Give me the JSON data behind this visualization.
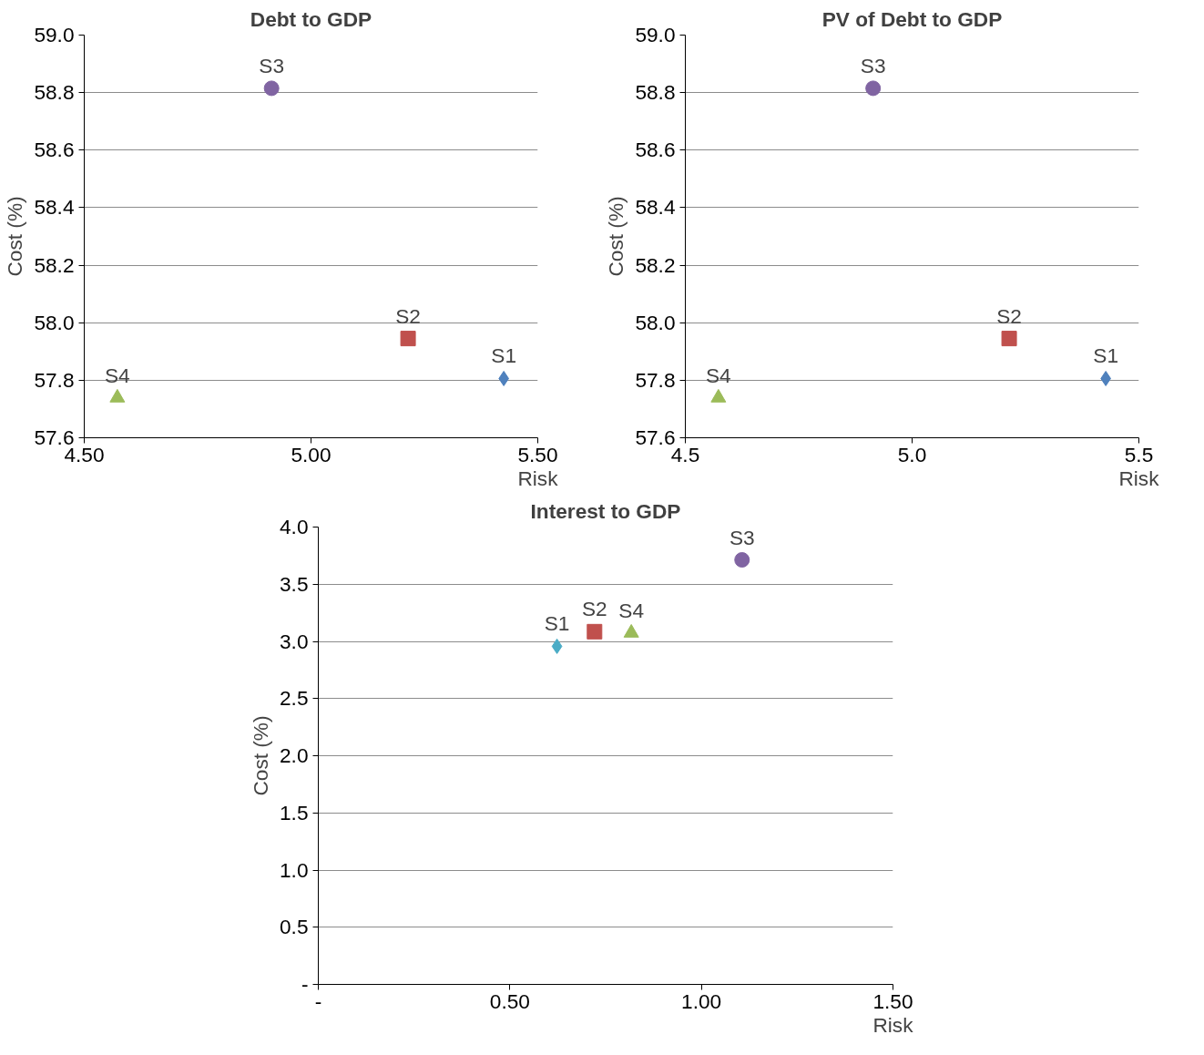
{
  "chart_data": [
    {
      "type": "scatter",
      "title": "Debt to GDP",
      "xlabel": "Risk",
      "ylabel": "Cost (%)",
      "grid": "y",
      "xlim": [
        4.5,
        5.5
      ],
      "xticks": [
        {
          "value": 4.5,
          "label": "4.50"
        },
        {
          "value": 5.0,
          "label": "5.00"
        },
        {
          "value": 5.5,
          "label": "5.50"
        }
      ],
      "ylim": [
        57.6,
        59.0
      ],
      "yticks": [
        {
          "value": 57.6,
          "label": "57.6"
        },
        {
          "value": 57.8,
          "label": "57.8"
        },
        {
          "value": 58.0,
          "label": "58.0"
        },
        {
          "value": 58.2,
          "label": "58.2"
        },
        {
          "value": 58.4,
          "label": "58.4"
        },
        {
          "value": 58.6,
          "label": "58.6"
        },
        {
          "value": 58.8,
          "label": "58.8"
        },
        {
          "value": 59.0,
          "label": "59.0"
        }
      ],
      "series": [
        {
          "name": "S1",
          "color": "#4f81bd",
          "marker": "diamond",
          "x": [
            5.425
          ],
          "values": [
            57.806
          ]
        },
        {
          "name": "S2",
          "color": "#c0504d",
          "marker": "square",
          "x": [
            5.214
          ],
          "values": [
            57.945
          ]
        },
        {
          "name": "S3",
          "color": "#8064a2",
          "marker": "circle",
          "x": [
            4.913
          ],
          "values": [
            58.815
          ]
        },
        {
          "name": "S4",
          "color": "#9bbb59",
          "marker": "triangle",
          "x": [
            4.573
          ],
          "values": [
            57.739
          ]
        }
      ]
    },
    {
      "type": "scatter",
      "title": "PV of Debt to GDP",
      "xlabel": "Risk",
      "ylabel": "Cost (%)",
      "grid": "y",
      "xlim": [
        4.5,
        5.5
      ],
      "xticks": [
        4.5,
        {
          "value": 5.0,
          "label": "5.0"
        },
        5.5
      ],
      "ylim": [
        57.6,
        59.0
      ],
      "yticks": [
        57.6,
        57.8,
        {
          "value": 58.0,
          "label": "58.0"
        },
        58.2,
        58.4,
        58.6,
        58.8,
        {
          "value": 59.0,
          "label": "59.0"
        }
      ],
      "series": [
        {
          "name": "S1",
          "color": "#4f81bd",
          "marker": "diamond",
          "x": [
            5.427
          ],
          "values": [
            57.806
          ]
        },
        {
          "name": "S2",
          "color": "#c0504d",
          "marker": "square",
          "x": [
            5.214
          ],
          "values": [
            57.945
          ]
        },
        {
          "name": "S3",
          "color": "#8064a2",
          "marker": "circle",
          "x": [
            4.914
          ],
          "values": [
            58.815
          ]
        },
        {
          "name": "S4",
          "color": "#9bbb59",
          "marker": "triangle",
          "x": [
            4.573
          ],
          "values": [
            57.739
          ]
        }
      ]
    },
    {
      "type": "scatter",
      "title": "Interest to GDP",
      "xlabel": "Risk",
      "ylabel": "Cost (%)",
      "grid": "y",
      "xlim": [
        0,
        1.5
      ],
      "xticks": [
        {
          "value": 0,
          "label": "-"
        },
        {
          "value": 0.5,
          "label": "0.50"
        },
        {
          "value": 1.0,
          "label": "1.00"
        },
        {
          "value": 1.5,
          "label": "1.50"
        }
      ],
      "ylim": [
        0,
        4.0
      ],
      "yticks": [
        {
          "value": 0,
          "label": "-"
        },
        0.5,
        {
          "value": 1.0,
          "label": "1.0"
        },
        1.5,
        {
          "value": 2.0,
          "label": "2.0"
        },
        2.5,
        {
          "value": 3.0,
          "label": "3.0"
        },
        3.5,
        {
          "value": 4.0,
          "label": "4.0"
        }
      ],
      "series": [
        {
          "name": "S1",
          "color": "#4bacc6",
          "marker": "diamond",
          "x": [
            0.623
          ],
          "values": [
            2.957
          ]
        },
        {
          "name": "S2",
          "color": "#c0504d",
          "marker": "square",
          "x": [
            0.721
          ],
          "values": [
            3.085
          ]
        },
        {
          "name": "S3",
          "color": "#8064a2",
          "marker": "circle",
          "x": [
            1.106
          ],
          "values": [
            3.713
          ]
        },
        {
          "name": "S4",
          "color": "#9bbb59",
          "marker": "triangle",
          "x": [
            0.817
          ],
          "values": [
            3.074
          ]
        }
      ]
    }
  ]
}
